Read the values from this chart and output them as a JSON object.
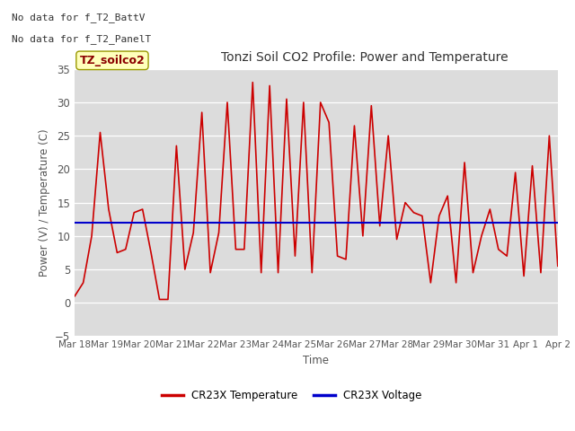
{
  "title": "Tonzi Soil CO2 Profile: Power and Temperature",
  "ylabel": "Power (V) / Temperature (C)",
  "xlabel": "Time",
  "no_data_text": [
    "No data for f_T2_BattV",
    "No data for f_T2_PanelT"
  ],
  "legend_box_label": "TZ_soilco2",
  "ylim": [
    -5,
    35
  ],
  "fig_bg_color": "#ffffff",
  "plot_bg_color": "#dcdcdc",
  "voltage_value": 12.0,
  "voltage_color": "#0000cc",
  "temp_color": "#cc0000",
  "legend_temp_label": "CR23X Temperature",
  "legend_volt_label": "CR23X Voltage",
  "x_tick_labels": [
    "Mar 18",
    "Mar 19",
    "Mar 20",
    "Mar 21",
    "Mar 22",
    "Mar 23",
    "Mar 24",
    "Mar 25",
    "Mar 26",
    "Mar 27",
    "Mar 28",
    "Mar 29",
    "Mar 30",
    "Mar 31",
    "Apr 1",
    "Apr 2"
  ],
  "temp_data": [
    1.0,
    3.0,
    10.0,
    25.5,
    14.0,
    7.5,
    8.0,
    13.5,
    14.0,
    7.5,
    0.5,
    0.5,
    23.5,
    5.0,
    10.5,
    28.5,
    4.5,
    10.5,
    30.0,
    8.0,
    8.0,
    33.0,
    4.5,
    32.5,
    4.5,
    30.5,
    7.0,
    30.0,
    4.5,
    30.0,
    27.0,
    7.0,
    6.5,
    26.5,
    10.0,
    29.5,
    11.5,
    25.0,
    9.5,
    15.0,
    13.5,
    13.0,
    3.0,
    13.0,
    16.0,
    3.0,
    21.0,
    4.5,
    10.0,
    14.0,
    8.0,
    7.0,
    19.5,
    4.0,
    20.5,
    4.5,
    25.0,
    5.5
  ]
}
